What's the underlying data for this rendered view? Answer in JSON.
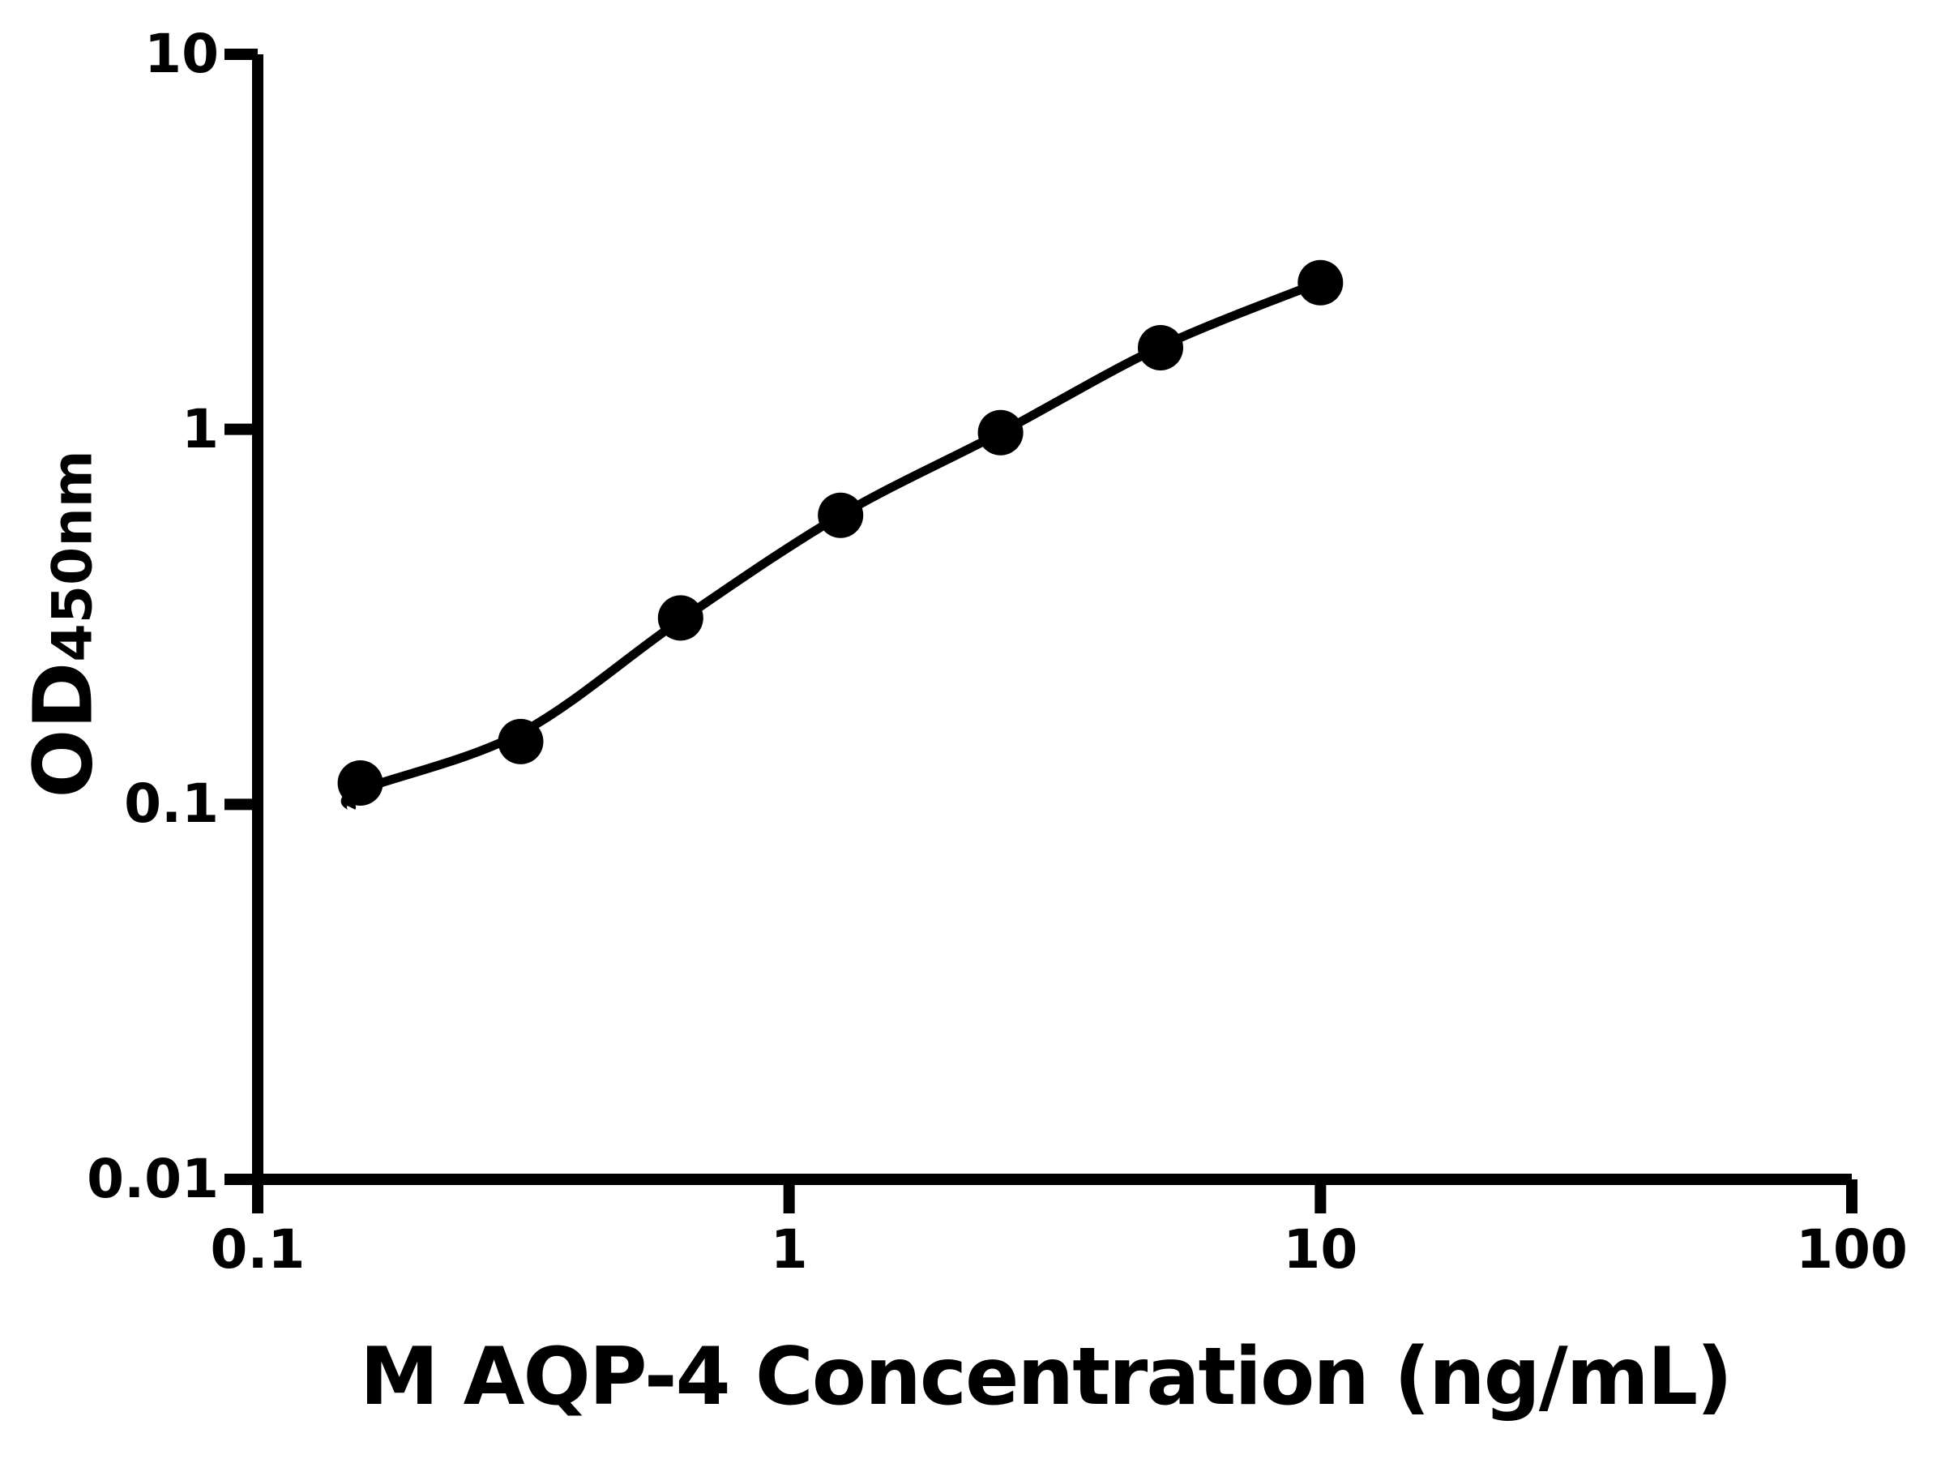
{
  "chart_data": {
    "type": "scatter",
    "title": "",
    "xlabel": "M AQP-4 Concentration (ng/mL)",
    "ylabel": "OD450nm",
    "ylabel_main": "OD",
    "ylabel_sub": "450nm",
    "x_scale": "log",
    "y_scale": "log",
    "xlim": [
      0.1,
      100
    ],
    "ylim": [
      0.01,
      10
    ],
    "x_ticks": [
      0.1,
      1,
      10,
      100
    ],
    "x_tick_labels": [
      "0.1",
      "1",
      "10",
      "100"
    ],
    "y_ticks": [
      0.01,
      0.1,
      1,
      10
    ],
    "y_tick_labels": [
      "0.01",
      "0.1",
      "1",
      "10"
    ],
    "grid": false,
    "legend": "none",
    "background_color": "#ffffff",
    "axis_color": "#000000",
    "series": [
      {
        "name": "standard-points",
        "type": "scatter",
        "marker": "circle",
        "color": "#000000",
        "x": [
          0.156,
          0.3125,
          0.625,
          1.25,
          2.5,
          5,
          10
        ],
        "y": [
          0.114,
          0.147,
          0.314,
          0.59,
          0.98,
          1.65,
          2.46
        ]
      },
      {
        "name": "fit-curve",
        "type": "line",
        "color": "#000000",
        "x": [
          0.15,
          0.156,
          0.3125,
          0.625,
          1.25,
          2.5,
          5,
          10
        ],
        "y": [
          0.098,
          0.109,
          0.155,
          0.31,
          0.59,
          0.98,
          1.66,
          2.47
        ]
      }
    ]
  }
}
